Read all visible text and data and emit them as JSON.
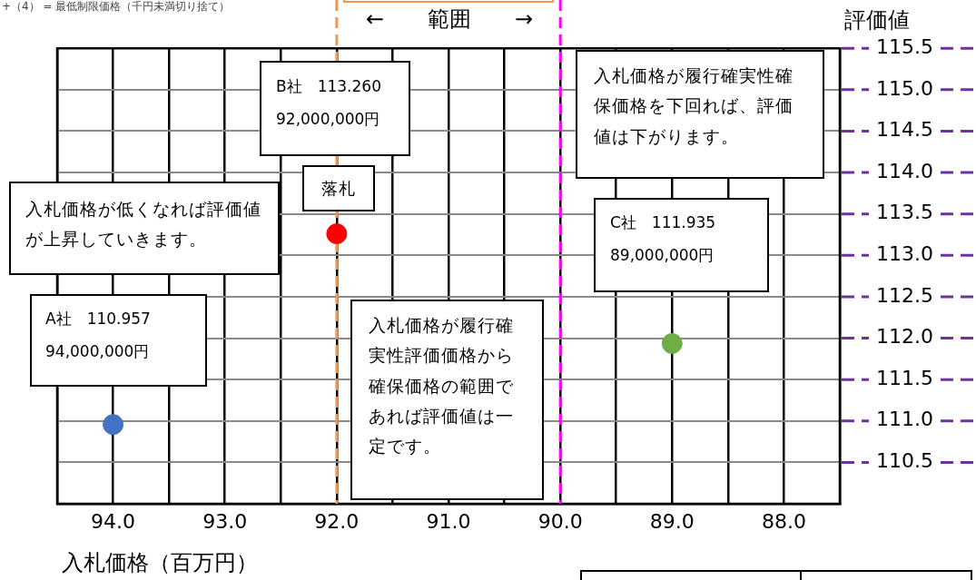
{
  "chart_data": {
    "type": "scatter",
    "xlabel": "入札価格（百万円）",
    "ylabel": "評価値",
    "xlim": [
      94.5,
      87.5
    ],
    "xticks": [
      {
        "value": 94.5,
        "label": null
      },
      {
        "value": 94.0,
        "label": "94.0"
      },
      {
        "value": 93.5,
        "label": null
      },
      {
        "value": 93.0,
        "label": "93.0"
      },
      {
        "value": 92.5,
        "label": null
      },
      {
        "value": 92.0,
        "label": "92.0"
      },
      {
        "value": 91.5,
        "label": null
      },
      {
        "value": 91.0,
        "label": "91.0"
      },
      {
        "value": 90.5,
        "label": null
      },
      {
        "value": 90.0,
        "label": "90.0"
      },
      {
        "value": 89.5,
        "label": null
      },
      {
        "value": 89.0,
        "label": "89.0"
      },
      {
        "value": 88.5,
        "label": null
      },
      {
        "value": 88.0,
        "label": "88.0"
      }
    ],
    "ylim": [
      110.0,
      115.5
    ],
    "yticks": [
      {
        "value": 110.5,
        "label": "110.5"
      },
      {
        "value": 111.0,
        "label": "111.0"
      },
      {
        "value": 111.5,
        "label": "111.5"
      },
      {
        "value": 112.0,
        "label": "112.0"
      },
      {
        "value": 112.5,
        "label": "112.5"
      },
      {
        "value": 113.0,
        "label": "113.0"
      },
      {
        "value": 113.5,
        "label": "113.5"
      },
      {
        "value": 114.0,
        "label": "114.0"
      },
      {
        "value": 114.5,
        "label": "114.5"
      },
      {
        "value": 115.0,
        "label": "115.0"
      },
      {
        "value": 115.5,
        "label": "115.5"
      }
    ],
    "grid": true,
    "legend": false,
    "marker": "circle",
    "series": [
      {
        "color": "#4472c4",
        "x": [
          94.0
        ],
        "values": [
          110.957
        ]
      },
      {
        "color": "#ff0000",
        "x": [
          92.0
        ],
        "values": [
          113.26
        ]
      },
      {
        "color": "#70ad47",
        "x": [
          89.0
        ],
        "values": [
          111.935
        ]
      }
    ],
    "ref_lines": [
      {
        "axis": "x",
        "value": 92.0,
        "label": null,
        "color": "#f79646",
        "line_style": "dashed"
      },
      {
        "axis": "x",
        "value": 90.0,
        "label": null,
        "color": "#ff00ff",
        "line_style": "dashed"
      }
    ],
    "annotations": [
      "+（4） = 最低制限価格（千円未満切り捨て）",
      "←　　範囲　　→",
      "落札",
      "入札価格が低くなれば評価値が上昇していきます。",
      "入札価格が履行確実性評価価格から確保価格の範囲であれば評価値は一定です。",
      "入札価格が履行確実性確保価格を下回れば、評価値は下がります。",
      "A社　110.957",
      "94,000,000円",
      "B社　113.260",
      "92,000,000円",
      "C社　111.935",
      "89,000,000円"
    ]
  }
}
